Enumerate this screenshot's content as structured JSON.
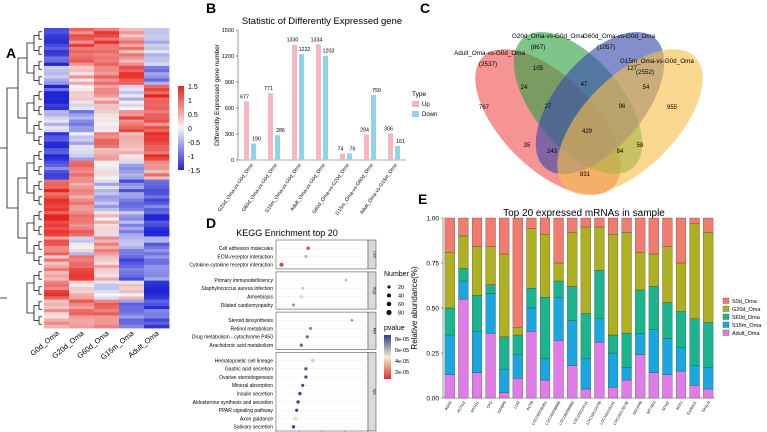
{
  "colors": {
    "heat_high": "#e8231c",
    "heat_mid": "#f4f4f4",
    "heat_low": "#1f25d6",
    "up": "#f4b7c2",
    "down": "#8fd2ea",
    "venn": [
      "#ef5350",
      "#2ea043",
      "#3949ab",
      "#f7c04a"
    ],
    "kegg_low": "#2d3f8f",
    "kegg_mid": "#f4f0c8",
    "kegg_high": "#d73027",
    "stack": [
      "#f27b6f",
      "#aeb022",
      "#1ab58e",
      "#1aa7e0",
      "#e07be8"
    ]
  },
  "panels": {
    "a": "A",
    "b": "B",
    "c": "C",
    "d": "D",
    "e": "E"
  },
  "chart_data": [
    {
      "id": "A",
      "type": "heatmap",
      "columns": [
        "G0d_Oma",
        "G20d_Oma",
        "G60d_Oma",
        "G15m_Oma",
        "Adult_Oma"
      ],
      "legend_ticks": [
        1.5,
        1,
        0.5,
        0,
        -0.5,
        -1,
        -1.5
      ],
      "legend_labels": [
        "1.5",
        "1",
        "0.5",
        "0",
        "-0.5",
        "-1",
        "-1.5"
      ],
      "blocks": [
        {
          "rows": 12,
          "values": [
            -1.2,
            1.0,
            1.1,
            0.6,
            -0.3
          ]
        },
        {
          "rows": 6,
          "values": [
            -0.6,
            0.4,
            0.8,
            1.2,
            -0.8
          ]
        },
        {
          "rows": 8,
          "values": [
            -1.3,
            0.1,
            0.5,
            -0.2,
            1.3
          ]
        },
        {
          "rows": 7,
          "values": [
            -0.2,
            -0.6,
            0.2,
            1.0,
            0.9
          ]
        },
        {
          "rows": 9,
          "values": [
            -1.4,
            -0.3,
            0.7,
            0.4,
            1.1
          ]
        },
        {
          "rows": 6,
          "values": [
            -1.0,
            0.8,
            0.2,
            -0.5,
            0.7
          ]
        },
        {
          "rows": 10,
          "values": [
            1.2,
            0.6,
            -0.4,
            -0.9,
            -1.0
          ]
        },
        {
          "rows": 8,
          "values": [
            1.3,
            1.0,
            0.2,
            -0.6,
            -1.2
          ]
        },
        {
          "rows": 6,
          "values": [
            0.9,
            -0.1,
            0.8,
            -0.6,
            -0.8
          ]
        },
        {
          "rows": 8,
          "values": [
            0.6,
            1.1,
            0.4,
            -1.0,
            -0.7
          ]
        },
        {
          "rows": 6,
          "values": [
            1.1,
            0.3,
            -0.3,
            0.2,
            -1.3
          ]
        },
        {
          "rows": 9,
          "values": [
            0.4,
            0.9,
            1.0,
            -0.8,
            -1.1
          ]
        }
      ]
    },
    {
      "id": "B",
      "type": "bar",
      "title": "Statistic of Differently Expressed gene",
      "ylabel": "Differently Expressed gene number",
      "ylim": [
        0,
        1500
      ],
      "yticks": [
        0,
        300,
        600,
        900,
        1200,
        1500
      ],
      "ytick_labels": [
        "0",
        "300",
        "600",
        "900",
        "1200",
        "1500"
      ],
      "categories": [
        "G20d_Oma-vs-G0d_Oma",
        "G60d_Oma-vs-G0d_Oma",
        "G15m_Oma-vs-G0d_Oma",
        "Adult_Oma-vs-G0d_Oma",
        "G60d_Oma-vs-G20d_Oma",
        "G15m_Oma-vs-G60d_Oma",
        "Adult_Oma-vs-G15m_Oma"
      ],
      "legend_title": "Type",
      "series": [
        {
          "name": "Up",
          "values": [
            677,
            771,
            1330,
            1334,
            74,
            294,
            306
          ],
          "labels": [
            "677",
            "771",
            "1330",
            "1334",
            "74",
            "294",
            "306"
          ]
        },
        {
          "name": "Down",
          "values": [
            190,
            286,
            1222,
            1203,
            76,
            750,
            161
          ],
          "labels": [
            "190",
            "286",
            "1222",
            "1203",
            "76",
            "750",
            "161"
          ]
        }
      ]
    },
    {
      "id": "C",
      "type": "venn",
      "sets": [
        {
          "name": "Adult_Oma-vs-G0d_Oma",
          "count": "(2537)"
        },
        {
          "name": "G20d_Oma-vs-G0d_Oma",
          "count": "(867)"
        },
        {
          "name": "G60d_Oma-vs-G0d_Oma",
          "count": "(1057)"
        },
        {
          "name": "G15m_Oma-vs-G0d_Oma",
          "count": "(2552)"
        }
      ],
      "regions": [
        "767",
        "105",
        "127",
        "955",
        "24",
        "47",
        "54",
        "27",
        "96",
        "429",
        "35",
        "243",
        "84",
        "58",
        "831"
      ]
    },
    {
      "id": "D",
      "type": "scatter",
      "title": "KEGG Enrichment top 20",
      "xlabel": "Enrichment Score",
      "xlim": [
        1.5,
        3.5
      ],
      "xticks": [
        1.5,
        2.0,
        2.5,
        3.0,
        3.5
      ],
      "xtick_labels": [
        "1.5",
        "2.0",
        "2.5",
        "3.0",
        "3.5"
      ],
      "groups": [
        {
          "strip": "Cell",
          "pathways": [
            {
              "name": "Cell adhesion molecules",
              "score": 2.2,
              "count": 30,
              "pvalue": 2e-05
            },
            {
              "name": "ECM-receptor interaction",
              "score": 2.15,
              "count": 20,
              "pvalue": 4e-05
            },
            {
              "name": "Cytokine-cytokine receptor interaction",
              "score": 1.62,
              "count": 40,
              "pvalue": 1.5e-05
            }
          ]
        },
        {
          "strip": "Orgs",
          "pathways": [
            {
              "name": "Primary immunodeficiency",
              "score": 3.02,
              "count": 8,
              "pvalue": 7e-05
            },
            {
              "name": "Staphylococcus aureus infection",
              "score": 2.08,
              "count": 16,
              "pvalue": 6.5e-05
            },
            {
              "name": "Amoebiasis",
              "score": 2.05,
              "count": 30,
              "pvalue": 6e-05
            },
            {
              "name": "Dilated cardiomyopathy",
              "score": 1.88,
              "count": 20,
              "pvalue": 7.5e-05
            }
          ]
        },
        {
          "strip": "Met",
          "pathways": [
            {
              "name": "Steroid biosynthesis",
              "score": 3.15,
              "count": 6,
              "pvalue": 8.5e-05
            },
            {
              "name": "Retinol metabolism",
              "score": 2.25,
              "count": 22,
              "pvalue": 8e-05
            },
            {
              "name": "Drug metabolism - cytochrome P450",
              "score": 2.18,
              "count": 20,
              "pvalue": 8.8e-05
            },
            {
              "name": "Arachidonic acid metabolism",
              "score": 2.05,
              "count": 24,
              "pvalue": 9e-05
            }
          ]
        },
        {
          "strip": "Sys",
          "pathways": [
            {
              "name": "Hematopoietic cell lineage",
              "score": 2.3,
              "count": 28,
              "pvalue": 4.5e-05
            },
            {
              "name": "Gastric acid secretion",
              "score": 2.15,
              "count": 24,
              "pvalue": 9.2e-05
            },
            {
              "name": "Ovarian steroidogenesis",
              "score": 2.15,
              "count": 22,
              "pvalue": 9.5e-05
            },
            {
              "name": "Mineral absorption",
              "score": 2.08,
              "count": 20,
              "pvalue": 9.6e-05
            },
            {
              "name": "Insulin secretion",
              "score": 2.02,
              "count": 26,
              "pvalue": 9.7e-05
            },
            {
              "name": "Aldosterone synthesis and secretion",
              "score": 1.98,
              "count": 26,
              "pvalue": 9.7e-05
            },
            {
              "name": "PPAR signaling pathway",
              "score": 1.95,
              "count": 22,
              "pvalue": 9.8e-05
            },
            {
              "name": "Axon guidance",
              "score": 1.92,
              "count": 36,
              "pvalue": 5e-05
            },
            {
              "name": "Salivary secretion",
              "score": 1.88,
              "count": 24,
              "pvalue": 9.8e-05
            }
          ]
        }
      ],
      "size_legend_title": "Number",
      "size_legend": [
        20,
        40,
        60,
        80
      ],
      "size_legend_labels": [
        "20",
        "40",
        "60",
        "80"
      ],
      "color_legend_title": "pvalue",
      "color_legend_labels": [
        "8e-05",
        "6e-05",
        "4e-05",
        "2e-05"
      ]
    },
    {
      "id": "E",
      "type": "bar",
      "title": "Top 20 expressed mRNAs in sample",
      "ylabel": "Relative abundance(%)",
      "ylim": [
        0,
        1
      ],
      "yticks": [
        0,
        0.25,
        0.5,
        0.75,
        1.0
      ],
      "ytick_labels": [
        "0.00",
        "0.25",
        "0.50",
        "0.75",
        "1.00"
      ],
      "categories": [
        "ADH5",
        "ACTG2",
        "MYH11",
        "CFD",
        "IGFBP6",
        "LUM",
        "ACTB",
        "LOC100335301",
        "LOC102038608",
        "LOC102090802",
        "LOC102114111",
        "LOC102114735",
        "LOC102115141",
        "LOC102178138",
        "NDUFA6",
        "MT-ND3",
        "MYH2",
        "SPP1",
        "S100A11",
        "TAGLN"
      ],
      "series": [
        {
          "name": "Adult_Oma",
          "values": [
            0.13,
            0.55,
            0.14,
            0.36,
            0.03,
            0.11,
            0.37,
            0.1,
            0.32,
            0.18,
            0.05,
            0.31,
            0.06,
            0.1,
            0.24,
            0.14,
            0.13,
            0.15,
            0.07,
            0.05
          ]
        },
        {
          "name": "G15m_Oma",
          "values": [
            0.22,
            0.1,
            0.23,
            0.22,
            0.13,
            0.13,
            0.13,
            0.12,
            0.24,
            0.25,
            0.17,
            0.13,
            0.19,
            0.07,
            0.12,
            0.24,
            0.2,
            0.13,
            0.11,
            0.12
          ]
        },
        {
          "name": "G60d_Oma",
          "values": [
            0.15,
            0.07,
            0.2,
            0.05,
            0.18,
            0.11,
            0.11,
            0.34,
            0.09,
            0.19,
            0.25,
            0.27,
            0.1,
            0.19,
            0.24,
            0.24,
            0.2,
            0.2,
            0.26,
            0.25
          ]
        },
        {
          "name": "G20d_Oma",
          "values": [
            0.31,
            0.18,
            0.27,
            0.21,
            0.46,
            0.04,
            0.33,
            0.35,
            0.1,
            0.3,
            0.48,
            0.24,
            0.56,
            0.56,
            0.21,
            0.18,
            0.31,
            0.27,
            0.53,
            0.5
          ]
        },
        {
          "name": "S0d_Oma",
          "values": [
            0.19,
            0.1,
            0.16,
            0.16,
            0.2,
            0.61,
            0.06,
            0.09,
            0.25,
            0.08,
            0.05,
            0.05,
            0.09,
            0.08,
            0.19,
            0.2,
            0.16,
            0.25,
            0.03,
            0.08
          ]
        }
      ],
      "legend_order": [
        "S0d_Oma",
        "G20d_Oma",
        "S60d_Oma",
        "S15m_Oma",
        "Adult_Oma"
      ]
    }
  ]
}
